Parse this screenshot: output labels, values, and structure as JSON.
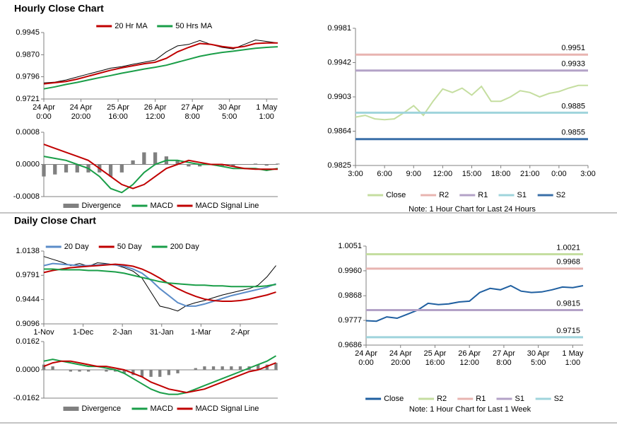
{
  "chart_data": [
    {
      "type": "combo",
      "title": "Hourly Close Chart",
      "legend": "top",
      "x": [
        0,
        6,
        12,
        18,
        24,
        30,
        36,
        42,
        48,
        54,
        60,
        66,
        72,
        78,
        84,
        90,
        96,
        102,
        108,
        114,
        120,
        126
      ],
      "xlim": [
        0,
        126
      ],
      "xticks": [
        {
          "value": 0,
          "label": "24 Apr\n0:00"
        },
        {
          "value": 20,
          "label": "24 Apr\n20:00"
        },
        {
          "value": 40,
          "label": "25 Apr\n16:00"
        },
        {
          "value": 60,
          "label": "26 Apr\n12:00"
        },
        {
          "value": 80,
          "label": "27 Apr\n8:00"
        },
        {
          "value": 100,
          "label": "30 Apr\n5:00"
        },
        {
          "value": 120,
          "label": "1 May\n1:00"
        }
      ],
      "ylim": [
        0.9721,
        0.9945
      ],
      "yticks": [
        0.9721,
        0.9796,
        {
          "value": 0.987,
          "label": "0.9870"
        },
        0.9945
      ],
      "series": [
        {
          "type": "line",
          "color": "#000000",
          "values": [
            0.9775,
            0.9778,
            0.9785,
            0.9795,
            0.9805,
            0.9815,
            0.9825,
            0.983,
            0.9838,
            0.9845,
            0.9852,
            0.988,
            0.99,
            0.9905,
            0.9918,
            0.9905,
            0.9895,
            0.989,
            0.9905,
            0.992,
            0.9915,
            0.991
          ]
        },
        {
          "type": "line",
          "name": "20 Hr MA",
          "color": "#c00000",
          "values": [
            0.9772,
            0.9776,
            0.978,
            0.9788,
            0.9798,
            0.9808,
            0.9818,
            0.9826,
            0.9833,
            0.984,
            0.9845,
            0.9858,
            0.988,
            0.9895,
            0.9908,
            0.9905,
            0.9898,
            0.9893,
            0.9898,
            0.9908,
            0.991,
            0.991
          ]
        },
        {
          "type": "line",
          "name": "50 Hrs MA",
          "color": "#1a9e48",
          "values": [
            0.9755,
            0.9762,
            0.977,
            0.9777,
            0.9785,
            0.9793,
            0.98,
            0.9808,
            0.9815,
            0.9822,
            0.9828,
            0.9835,
            0.9845,
            0.9855,
            0.9865,
            0.9872,
            0.9878,
            0.9882,
            0.9887,
            0.9892,
            0.9895,
            0.9897
          ]
        }
      ]
    },
    {
      "type": "combo",
      "legend": "bottom",
      "x": [
        0,
        6,
        12,
        18,
        24,
        30,
        36,
        42,
        48,
        54,
        60,
        66,
        72,
        78,
        84,
        90,
        96,
        102,
        108,
        114,
        120,
        126
      ],
      "xlim": [
        0,
        126
      ],
      "ylim": [
        -0.0008,
        0.0008
      ],
      "yticks": [
        -0.0008,
        {
          "value": 0,
          "label": "0.0000"
        },
        0.0008
      ],
      "series": [
        {
          "type": "bar",
          "name": "Divergence",
          "color": "#808080",
          "values": [
            -0.0003,
            -0.00025,
            -0.0002,
            -0.0002,
            -0.0002,
            -0.0002,
            -0.0003,
            -0.0002,
            0.0001,
            0.0003,
            0.0003,
            0.0002,
            0.0001,
            -5e-05,
            -5e-05,
            0,
            -5e-05,
            -5e-05,
            0,
            2e-05,
            -3e-05,
            2e-05
          ]
        },
        {
          "type": "line",
          "name": "MACD",
          "color": "#1a9e48",
          "values": [
            0.0002,
            0.00015,
            0.0001,
            0,
            -0.0001,
            -0.0003,
            -0.0006,
            -0.0007,
            -0.0005,
            -0.0002,
            0,
            0.0001,
            0.0001,
            5e-05,
            0,
            0,
            -5e-05,
            -0.0001,
            -0.0001,
            -0.0001,
            -0.00015,
            -0.0001
          ]
        },
        {
          "type": "line",
          "name": "MACD Signal Line",
          "color": "#c00000",
          "values": [
            0.0005,
            0.0004,
            0.0003,
            0.0002,
            0.0001,
            -0.0001,
            -0.0003,
            -0.0005,
            -0.0006,
            -0.0005,
            -0.0003,
            -0.0001,
            0,
            0.0001,
            5e-05,
            0,
            0,
            -5e-05,
            -0.0001,
            -0.00012,
            -0.00012,
            -0.00012
          ]
        }
      ]
    },
    {
      "type": "combo",
      "legend": "bottom",
      "note": "Note: 1 Hour Chart for Last 24 Hours",
      "x": [
        0,
        1,
        2,
        3,
        4,
        5,
        6,
        7,
        8,
        9,
        10,
        11,
        12,
        13,
        14,
        15,
        16,
        17,
        18,
        19,
        20,
        21,
        22,
        23,
        24
      ],
      "xlim": [
        0,
        24
      ],
      "xticks": [
        {
          "value": 0,
          "label": "3:00"
        },
        {
          "value": 3,
          "label": "6:00"
        },
        {
          "value": 6,
          "label": "9:00"
        },
        {
          "value": 9,
          "label": "12:00"
        },
        {
          "value": 12,
          "label": "15:00"
        },
        {
          "value": 15,
          "label": "18:00"
        },
        {
          "value": 18,
          "label": "21:00"
        },
        {
          "value": 21,
          "label": "0:00"
        },
        {
          "value": 24,
          "label": "3:00"
        }
      ],
      "ylim": [
        0.9825,
        0.9981
      ],
      "yticks": [
        0.9825,
        0.9864,
        0.9903,
        0.9942,
        0.9981
      ],
      "series": [
        {
          "type": "line",
          "name": "Close",
          "color": "#c5dea0",
          "values": [
            0.988,
            0.9882,
            0.9878,
            0.9877,
            0.9878,
            0.9885,
            0.9893,
            0.9882,
            0.9898,
            0.9912,
            0.9908,
            0.9913,
            0.9905,
            0.9915,
            0.9898,
            0.9898,
            0.9903,
            0.991,
            0.9908,
            0.9903,
            0.9907,
            0.9909,
            0.9913,
            0.9916,
            0.9916
          ]
        },
        {
          "type": "level",
          "name": "R2",
          "color": "#e8b4b0",
          "value": 0.9951
        },
        {
          "type": "level",
          "name": "R1",
          "color": "#b3a2c7",
          "value": 0.9933
        },
        {
          "type": "level",
          "name": "S1",
          "color": "#9fd4dc",
          "value": 0.9885
        },
        {
          "type": "level",
          "name": "S2",
          "color": "#3a6fa8",
          "value": 0.9855
        }
      ]
    },
    {
      "type": "combo",
      "title": "Daily Close Chart",
      "legend": "top",
      "x": [
        0,
        5,
        10,
        15,
        20,
        25,
        30,
        35,
        40,
        45,
        50,
        55,
        60,
        65,
        70,
        75,
        80,
        85,
        90,
        95,
        100,
        105,
        110,
        115,
        120,
        125,
        130
      ],
      "xlim": [
        0,
        131
      ],
      "xticks": [
        {
          "value": 0,
          "label": "1-Nov"
        },
        {
          "value": 22,
          "label": "1-Dec"
        },
        {
          "value": 44,
          "label": "2-Jan"
        },
        {
          "value": 66,
          "label": "31-Jan"
        },
        {
          "value": 88,
          "label": "1-Mar"
        },
        {
          "value": 110,
          "label": "2-Apr"
        }
      ],
      "ylim": [
        0.9096,
        1.0138
      ],
      "yticks": [
        0.9096,
        0.9444,
        0.9791,
        1.0138
      ],
      "series": [
        {
          "type": "line",
          "color": "#000000",
          "values": [
            1.006,
            1.002,
            0.998,
            0.993,
            0.996,
            0.992,
            0.997,
            0.996,
            0.994,
            0.99,
            0.985,
            0.975,
            0.955,
            0.935,
            0.932,
            0.928,
            0.936,
            0.94,
            0.943,
            0.947,
            0.951,
            0.954,
            0.957,
            0.96,
            0.965,
            0.977,
            0.993
          ]
        },
        {
          "type": "line",
          "name": "20 Day",
          "color": "#5b8cc8",
          "values": [
            0.993,
            0.996,
            0.995,
            0.994,
            0.993,
            0.993,
            0.994,
            0.995,
            0.994,
            0.992,
            0.988,
            0.982,
            0.972,
            0.96,
            0.95,
            0.94,
            0.935,
            0.935,
            0.938,
            0.942,
            0.946,
            0.95,
            0.953,
            0.956,
            0.959,
            0.962,
            0.967
          ]
        },
        {
          "type": "line",
          "name": "50 Day",
          "color": "#c00000",
          "values": [
            0.983,
            0.986,
            0.988,
            0.99,
            0.991,
            0.992,
            0.993,
            0.994,
            0.995,
            0.994,
            0.992,
            0.988,
            0.982,
            0.975,
            0.967,
            0.96,
            0.954,
            0.949,
            0.945,
            0.943,
            0.942,
            0.942,
            0.943,
            0.945,
            0.948,
            0.951,
            0.955
          ]
        },
        {
          "type": "line",
          "name": "200 Day",
          "color": "#1a9e48",
          "values": [
            0.988,
            0.988,
            0.987,
            0.987,
            0.987,
            0.986,
            0.986,
            0.985,
            0.984,
            0.982,
            0.979,
            0.976,
            0.973,
            0.97,
            0.968,
            0.967,
            0.966,
            0.965,
            0.965,
            0.964,
            0.964,
            0.963,
            0.963,
            0.963,
            0.963,
            0.964,
            0.966
          ]
        }
      ]
    },
    {
      "type": "combo",
      "legend": "bottom",
      "x": [
        0,
        5,
        10,
        15,
        20,
        25,
        30,
        35,
        40,
        45,
        50,
        55,
        60,
        65,
        70,
        75,
        80,
        85,
        90,
        95,
        100,
        105,
        110,
        115,
        120,
        125,
        130
      ],
      "xlim": [
        0,
        131
      ],
      "ylim": [
        -0.0162,
        0.0162
      ],
      "yticks": [
        -0.0162,
        {
          "value": 0,
          "label": "0.0000"
        },
        0.0162
      ],
      "series": [
        {
          "type": "bar",
          "name": "Divergence",
          "color": "#808080",
          "values": [
            0.003,
            0.002,
            0,
            -0.001,
            -0.001,
            -0.001,
            0,
            -0.001,
            -0.001,
            -0.002,
            -0.003,
            -0.004,
            -0.004,
            -0.004,
            -0.003,
            -0.002,
            0,
            0.001,
            0.002,
            0.002,
            0.002,
            0.002,
            0.002,
            0.002,
            0.003,
            0.003,
            0.004
          ]
        },
        {
          "type": "line",
          "name": "MACD",
          "color": "#1a9e48",
          "values": [
            0.005,
            0.006,
            0.005,
            0.004,
            0.003,
            0.002,
            0.002,
            0.001,
            0,
            -0.002,
            -0.005,
            -0.008,
            -0.011,
            -0.013,
            -0.014,
            -0.014,
            -0.013,
            -0.011,
            -0.009,
            -0.007,
            -0.005,
            -0.003,
            -0.001,
            0.001,
            0.003,
            0.005,
            0.008
          ]
        },
        {
          "type": "line",
          "name": "MACD Signal Line",
          "color": "#c00000",
          "values": [
            0.002,
            0.004,
            0.005,
            0.005,
            0.004,
            0.003,
            0.002,
            0.002,
            0.001,
            0,
            -0.002,
            -0.004,
            -0.007,
            -0.009,
            -0.011,
            -0.012,
            -0.013,
            -0.012,
            -0.011,
            -0.009,
            -0.007,
            -0.005,
            -0.003,
            -0.001,
            0,
            0.002,
            0.004
          ]
        }
      ]
    },
    {
      "type": "combo",
      "legend": "bottom",
      "note": "Note: 1 Hour Chart for Last 1 Week",
      "x": [
        0,
        6,
        12,
        18,
        24,
        30,
        36,
        42,
        48,
        54,
        60,
        66,
        72,
        78,
        84,
        90,
        96,
        102,
        108,
        114,
        120,
        126
      ],
      "xlim": [
        0,
        126
      ],
      "xticks": [
        {
          "value": 0,
          "label": "24 Apr\n0:00"
        },
        {
          "value": 20,
          "label": "24 Apr\n20:00"
        },
        {
          "value": 40,
          "label": "25 Apr\n16:00"
        },
        {
          "value": 60,
          "label": "26 Apr\n12:00"
        },
        {
          "value": 80,
          "label": "27 Apr\n8:00"
        },
        {
          "value": 100,
          "label": "30 Apr\n5:00"
        },
        {
          "value": 120,
          "label": "1 May\n1:00"
        }
      ],
      "ylim": [
        0.9686,
        1.0051
      ],
      "yticks": [
        0.9686,
        0.9777,
        0.9868,
        {
          "value": 0.996,
          "label": "0.9960"
        },
        1.0051
      ],
      "series": [
        {
          "type": "line",
          "name": "Close",
          "color": "#1f5fa0",
          "values": [
            0.9776,
            0.9774,
            0.979,
            0.9785,
            0.98,
            0.9815,
            0.984,
            0.9835,
            0.9838,
            0.9845,
            0.9848,
            0.988,
            0.9895,
            0.989,
            0.9905,
            0.9885,
            0.988,
            0.9882,
            0.989,
            0.99,
            0.9898,
            0.9905
          ]
        },
        {
          "type": "level",
          "name": "R2",
          "color": "#c5dea0",
          "value": 1.0021
        },
        {
          "type": "level",
          "name": "R1",
          "color": "#e8b4b0",
          "value": 0.9968
        },
        {
          "type": "level",
          "name": "S1",
          "color": "#b3a2c7",
          "value": 0.9815
        },
        {
          "type": "level",
          "name": "S2",
          "color": "#9fd4dc",
          "value": 0.9715
        }
      ]
    }
  ]
}
